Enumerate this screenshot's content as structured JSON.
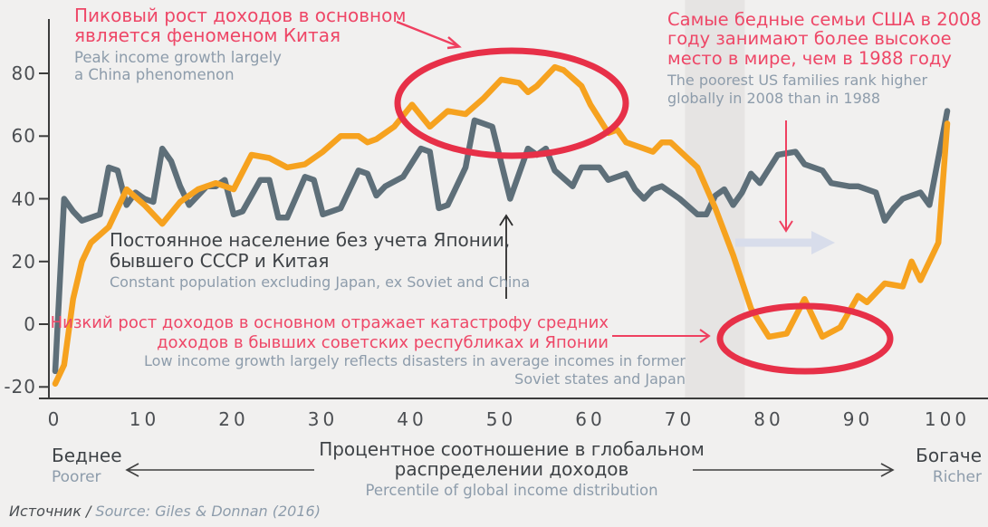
{
  "colors": {
    "background": "#f1f0ef",
    "line_orange": "#f6a21f",
    "line_gray": "#5e6f79",
    "red_shape": "#e73048",
    "red_text": "#ee4767",
    "dark_text": "#3f4347",
    "secondary_text": "#8d9cab",
    "band": "#e6e4e3",
    "lavender_arrow": "#d8ddeb",
    "axis": "#3c3c3c"
  },
  "chart_data": {
    "type": "line",
    "title": "",
    "xlabel_ru": "Процентное соотношение в глобальном распределении доходов",
    "xlabel_en": "Percentile of global income distribution",
    "xlim": [
      0,
      100
    ],
    "ylim": [
      -20,
      85
    ],
    "xticks": [
      0,
      10,
      20,
      30,
      40,
      50,
      60,
      70,
      80,
      90,
      100
    ],
    "yticks": [
      80,
      60,
      40,
      20,
      0,
      -20
    ],
    "grid": false,
    "legend": "none (lines identified by in-chart annotations)",
    "highlight_band": {
      "from": 70.6,
      "to": 77.3
    },
    "series": [
      {
        "id": "constant-population-line",
        "label_ru": "Постоянное население без учета Японии, бывшего СССР и Китая",
        "label_en": "Constant population excluding Japan, ex Soviet and China",
        "color": "#5e6f79",
        "points": [
          [
            0,
            -15
          ],
          [
            1,
            40
          ],
          [
            2,
            36
          ],
          [
            3,
            33
          ],
          [
            5,
            35
          ],
          [
            6,
            50
          ],
          [
            7,
            49
          ],
          [
            8,
            38
          ],
          [
            9,
            42
          ],
          [
            10,
            40
          ],
          [
            11,
            39
          ],
          [
            12,
            56
          ],
          [
            13,
            52
          ],
          [
            14,
            44
          ],
          [
            15,
            38
          ],
          [
            17,
            44
          ],
          [
            18,
            44
          ],
          [
            19,
            46
          ],
          [
            20,
            35
          ],
          [
            21,
            36
          ],
          [
            23,
            46
          ],
          [
            24,
            46
          ],
          [
            25,
            34
          ],
          [
            26,
            34
          ],
          [
            28,
            47
          ],
          [
            29,
            46
          ],
          [
            30,
            35
          ],
          [
            32,
            37
          ],
          [
            34,
            49
          ],
          [
            35,
            48
          ],
          [
            36,
            41
          ],
          [
            37,
            44
          ],
          [
            39,
            47
          ],
          [
            41,
            56
          ],
          [
            42,
            55
          ],
          [
            43,
            37
          ],
          [
            44,
            38
          ],
          [
            46,
            50
          ],
          [
            47,
            65
          ],
          [
            49,
            63
          ],
          [
            51,
            40
          ],
          [
            53,
            56
          ],
          [
            54,
            54
          ],
          [
            55,
            56
          ],
          [
            56,
            49
          ],
          [
            58,
            44
          ],
          [
            59,
            50
          ],
          [
            61,
            50
          ],
          [
            62,
            46
          ],
          [
            64,
            48
          ],
          [
            65,
            43
          ],
          [
            66,
            40
          ],
          [
            67,
            43
          ],
          [
            68,
            44
          ],
          [
            70,
            40
          ],
          [
            72,
            35
          ],
          [
            73,
            35
          ],
          [
            74,
            41
          ],
          [
            75,
            43
          ],
          [
            76,
            38
          ],
          [
            77,
            42
          ],
          [
            78,
            48
          ],
          [
            79,
            45
          ],
          [
            81,
            54
          ],
          [
            83,
            55
          ],
          [
            84,
            51
          ],
          [
            86,
            49
          ],
          [
            87,
            45
          ],
          [
            89,
            44
          ],
          [
            90,
            44
          ],
          [
            92,
            42
          ],
          [
            93,
            33
          ],
          [
            94,
            37
          ],
          [
            95,
            40
          ],
          [
            96,
            41
          ],
          [
            97,
            42
          ],
          [
            98,
            38
          ],
          [
            100,
            68
          ]
        ]
      },
      {
        "id": "global-income-growth-line",
        "label_ru": "",
        "label_en": "",
        "color": "#f6a21f",
        "points": [
          [
            0,
            -19
          ],
          [
            1,
            -13
          ],
          [
            2,
            8
          ],
          [
            3,
            20
          ],
          [
            4,
            26
          ],
          [
            6,
            31
          ],
          [
            8,
            43
          ],
          [
            10,
            38
          ],
          [
            12,
            32
          ],
          [
            14,
            39
          ],
          [
            16,
            43
          ],
          [
            18,
            45
          ],
          [
            20,
            43
          ],
          [
            22,
            54
          ],
          [
            24,
            53
          ],
          [
            26,
            50
          ],
          [
            28,
            51
          ],
          [
            30,
            55
          ],
          [
            32,
            60
          ],
          [
            34,
            60
          ],
          [
            35,
            58
          ],
          [
            36,
            59
          ],
          [
            38,
            63
          ],
          [
            40,
            70
          ],
          [
            42,
            63
          ],
          [
            44,
            68
          ],
          [
            46,
            67
          ],
          [
            48,
            72
          ],
          [
            50,
            78
          ],
          [
            52,
            77
          ],
          [
            53,
            74
          ],
          [
            54,
            76
          ],
          [
            56,
            82
          ],
          [
            57,
            81
          ],
          [
            59,
            76
          ],
          [
            60,
            70
          ],
          [
            62,
            61
          ],
          [
            63,
            62
          ],
          [
            64,
            58
          ],
          [
            66,
            56
          ],
          [
            67,
            55
          ],
          [
            68,
            58
          ],
          [
            69,
            58
          ],
          [
            72,
            50
          ],
          [
            74,
            37
          ],
          [
            76,
            22
          ],
          [
            78,
            5
          ],
          [
            80,
            -4
          ],
          [
            82,
            -3
          ],
          [
            84,
            8
          ],
          [
            86,
            -4
          ],
          [
            88,
            -1
          ],
          [
            90,
            9
          ],
          [
            91,
            7
          ],
          [
            93,
            13
          ],
          [
            95,
            12
          ],
          [
            96,
            20
          ],
          [
            97,
            14
          ],
          [
            99,
            26
          ],
          [
            100,
            64
          ]
        ]
      }
    ]
  },
  "annotations": {
    "peak": {
      "ru_lines": [
        "Пиковый рост доходов в основном",
        "является феноменом Китая"
      ],
      "en_lines": [
        "Peak income growth largely",
        "a China phenomenon"
      ]
    },
    "us": {
      "ru_lines": [
        "Самые бедные семьи США в 2008",
        "году занимают более высокое",
        "место в мире, чем в 1988 году"
      ],
      "en_lines": [
        "The poorest US families rank higher",
        "globally in 2008 than in 1988"
      ]
    },
    "constant": {
      "ru_lines": [
        "Постоянное население без учета Японии,",
        "бывшего СССР и Китая"
      ],
      "en_lines": [
        "Constant population excluding Japan, ex Soviet and China"
      ]
    },
    "low": {
      "ru_lines": [
        "Низкий рост доходов в основном отражает катастрофу средних",
        "доходов в бывших советских республиках и Японии"
      ],
      "en_lines": [
        "Low income growth largely reflects disasters in average incomes in former",
        "Soviet states and Japan"
      ]
    }
  },
  "axis": {
    "x_title_ru_lines": [
      "Процентное соотношение",
      "в глобальном распределении доходов"
    ],
    "x_title_en": "Percentile of global income distribution",
    "left_ru": "Беднее",
    "left_en": "Poorer",
    "right_ru": "Богаче",
    "right_en": "Richer"
  },
  "footer": {
    "source_prefix": "Источник /",
    "source_text": " Source: Giles & Donnan (2016)"
  }
}
